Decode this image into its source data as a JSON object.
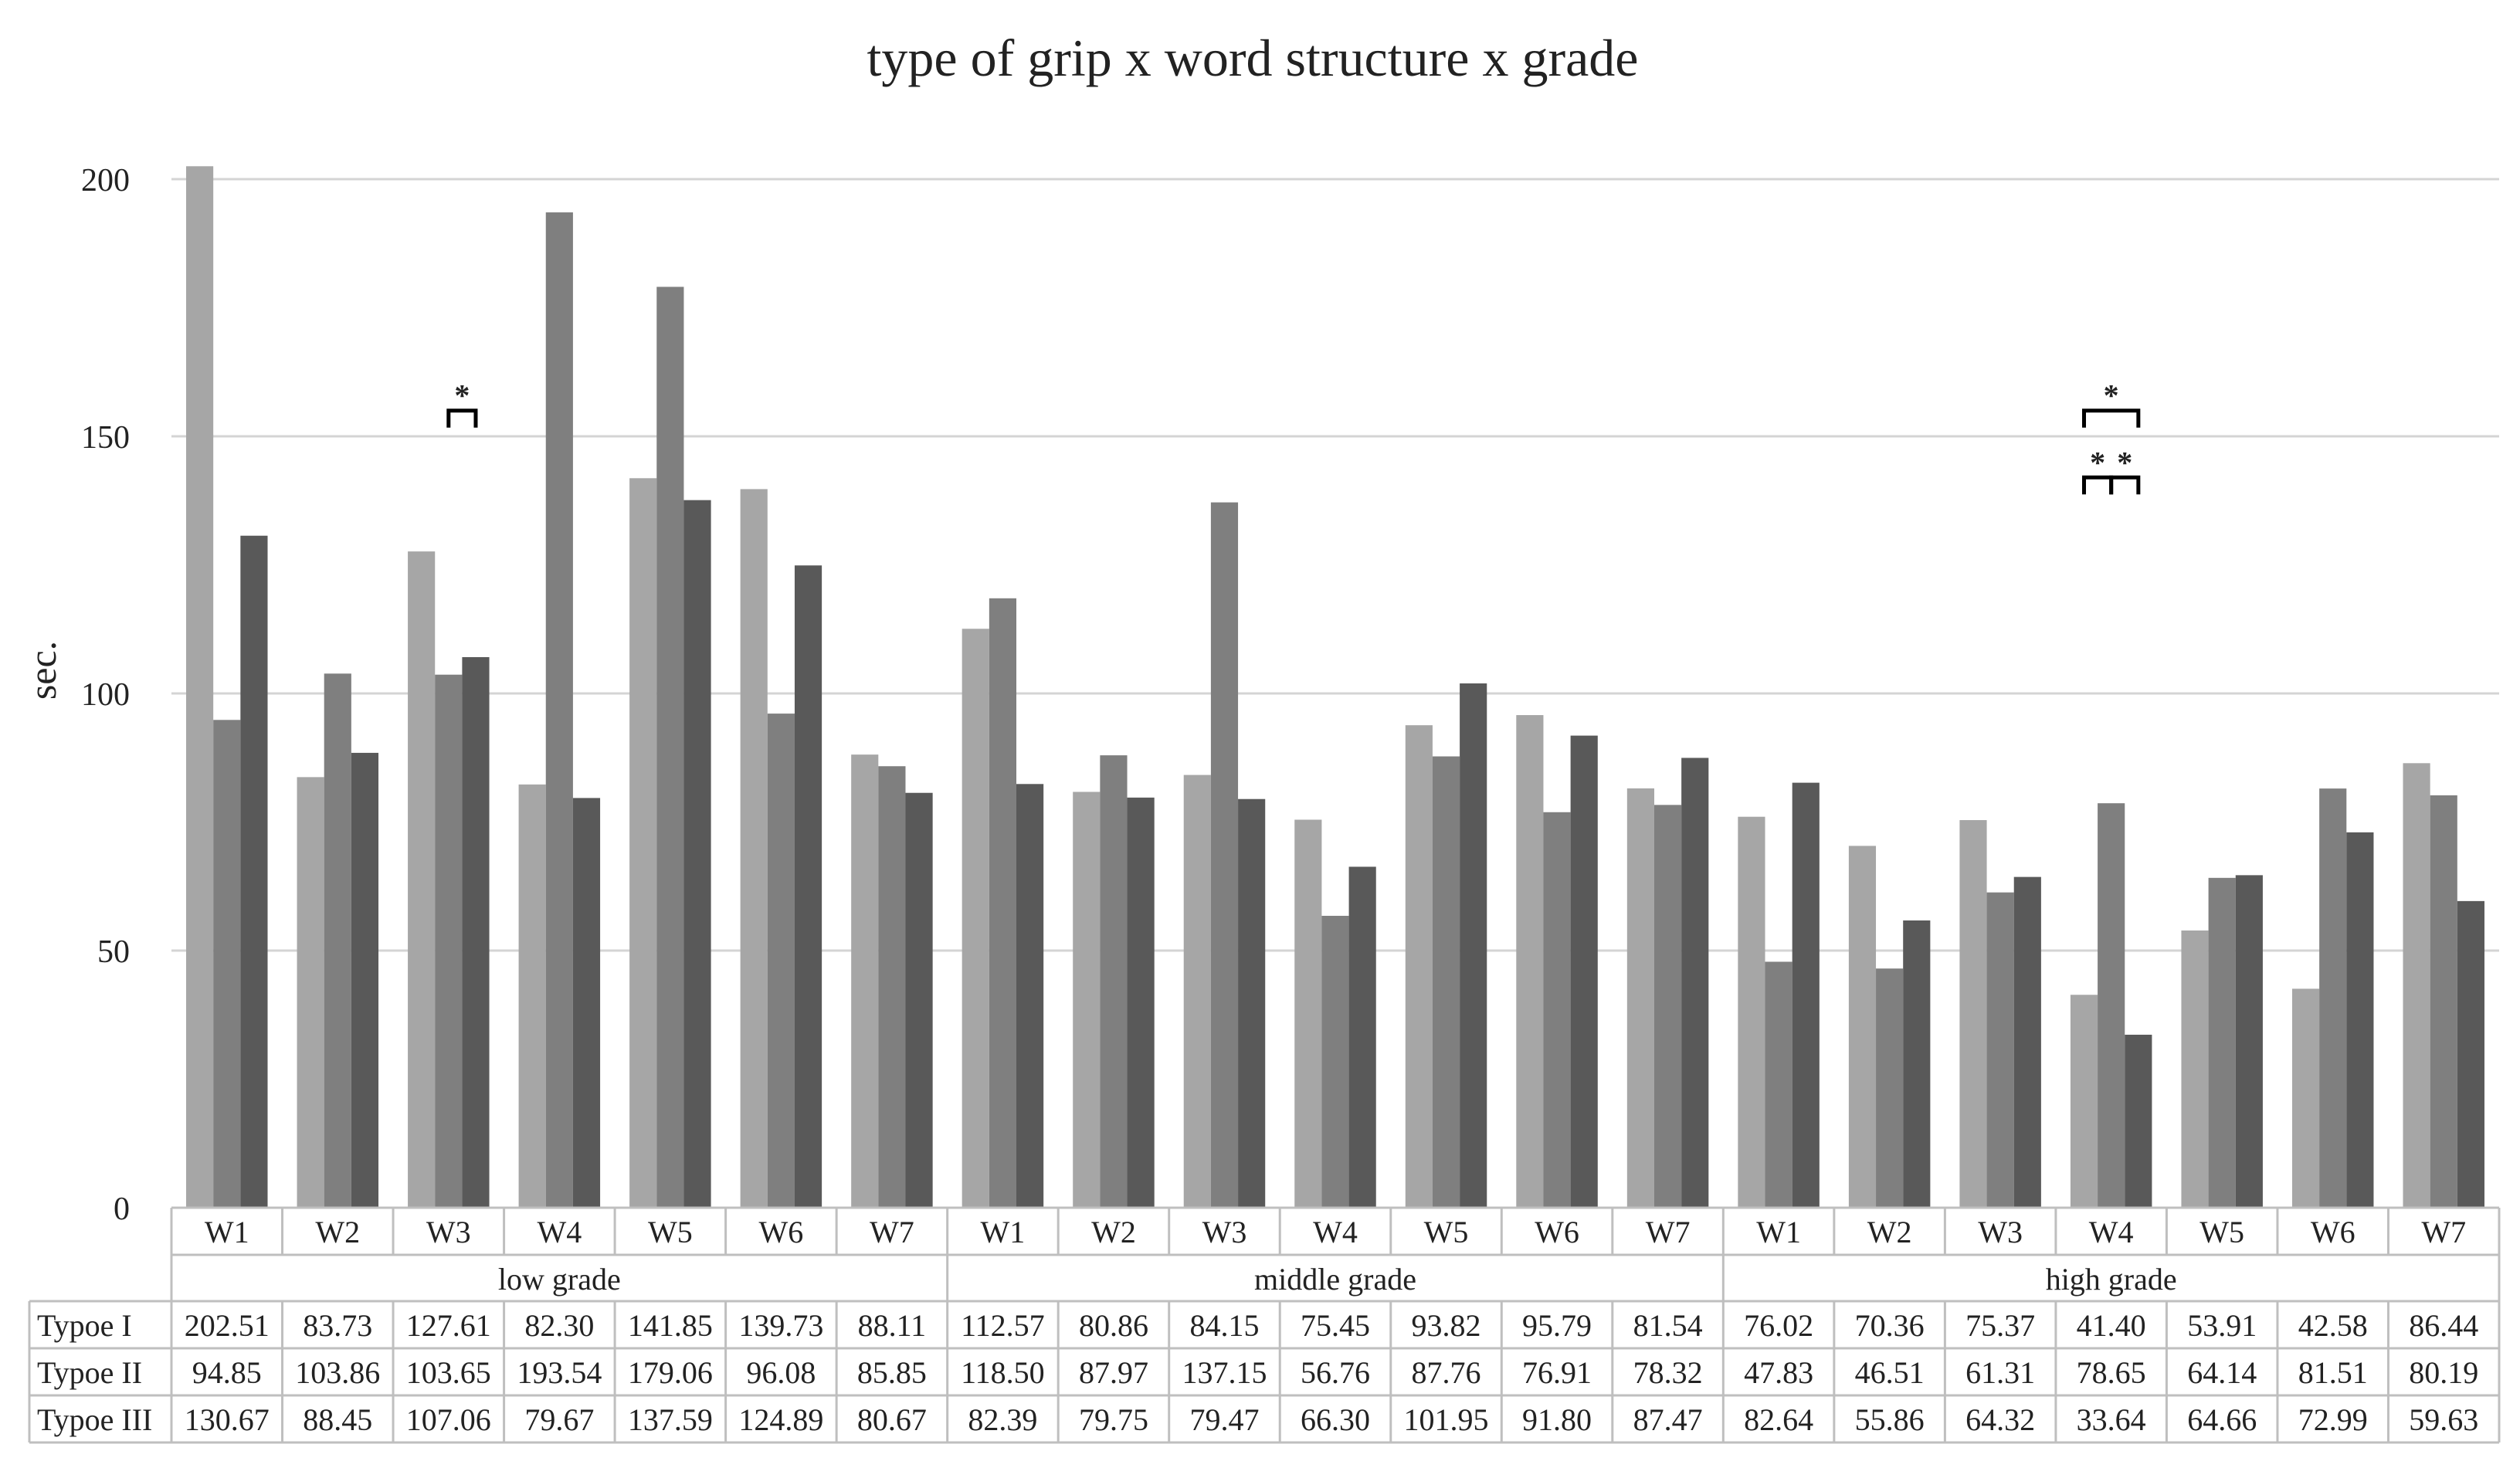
{
  "chart_data": {
    "type": "bar",
    "title": "type of grip x word structure x grade",
    "ylabel": "sec.",
    "xlabel": "",
    "ylim": [
      0,
      200
    ],
    "yticks": [
      0,
      50,
      100,
      150,
      200
    ],
    "grid": true,
    "legend": "data-table",
    "groups": [
      {
        "label": "low grade",
        "categories": [
          "W1",
          "W2",
          "W3",
          "W4",
          "W5",
          "W6",
          "W7"
        ]
      },
      {
        "label": "middle grade",
        "categories": [
          "W1",
          "W2",
          "W3",
          "W4",
          "W5",
          "W6",
          "W7"
        ]
      },
      {
        "label": "high grade",
        "categories": [
          "W1",
          "W2",
          "W3",
          "W4",
          "W5",
          "W6",
          "W7"
        ]
      }
    ],
    "series": [
      {
        "name": "Typoe I",
        "color": "#a6a6a6",
        "values": [
          202.51,
          83.73,
          127.61,
          82.3,
          141.85,
          139.73,
          88.11,
          112.57,
          80.86,
          84.15,
          75.45,
          93.82,
          95.79,
          81.54,
          76.02,
          70.36,
          75.37,
          41.4,
          53.91,
          42.58,
          86.44
        ]
      },
      {
        "name": "Typoe II",
        "color": "#7f7f7f",
        "values": [
          94.85,
          103.86,
          103.65,
          193.54,
          179.06,
          96.08,
          85.85,
          118.5,
          87.97,
          137.15,
          56.76,
          87.76,
          76.91,
          78.32,
          47.83,
          46.51,
          61.31,
          78.65,
          64.14,
          81.51,
          80.19
        ]
      },
      {
        "name": "Typoe III",
        "color": "#595959",
        "values": [
          130.67,
          88.45,
          107.06,
          79.67,
          137.59,
          124.89,
          80.67,
          82.39,
          79.75,
          79.47,
          66.3,
          101.95,
          91.8,
          87.47,
          82.64,
          55.86,
          64.32,
          33.64,
          64.66,
          72.99,
          59.63
        ]
      }
    ],
    "value_labels": [
      [
        "202.51",
        "83.73",
        "127.61",
        "82.30",
        "141.85",
        "139.73",
        "88.11",
        "112.57",
        "80.86",
        "84.15",
        "75.45",
        "93.82",
        "95.79",
        "81.54",
        "76.02",
        "70.36",
        "75.37",
        "41.40",
        "53.91",
        "42.58",
        "86.44"
      ],
      [
        "94.85",
        "103.86",
        "103.65",
        "193.54",
        "179.06",
        "96.08",
        "85.85",
        "118.50",
        "87.97",
        "137.15",
        "56.76",
        "87.76",
        "76.91",
        "78.32",
        "47.83",
        "46.51",
        "61.31",
        "78.65",
        "64.14",
        "81.51",
        "80.19"
      ],
      [
        "130.67",
        "88.45",
        "107.06",
        "79.67",
        "137.59",
        "124.89",
        "80.67",
        "82.39",
        "79.75",
        "79.47",
        "66.30",
        "101.95",
        "91.80",
        "87.47",
        "82.64",
        "55.86",
        "64.32",
        "33.64",
        "64.66",
        "72.99",
        "59.63"
      ]
    ],
    "annotations": [
      {
        "category_index": 2,
        "from_series": 1,
        "to_series": 2,
        "level": 155,
        "label": "*"
      },
      {
        "category_index": 17,
        "from_series": 0,
        "to_series": 2,
        "level": 155,
        "label": "*"
      },
      {
        "category_index": 17,
        "from_series": 0,
        "to_series": 1,
        "level": 142,
        "label": "*"
      },
      {
        "category_index": 17,
        "from_series": 1,
        "to_series": 2,
        "level": 142,
        "label": "*"
      }
    ]
  }
}
